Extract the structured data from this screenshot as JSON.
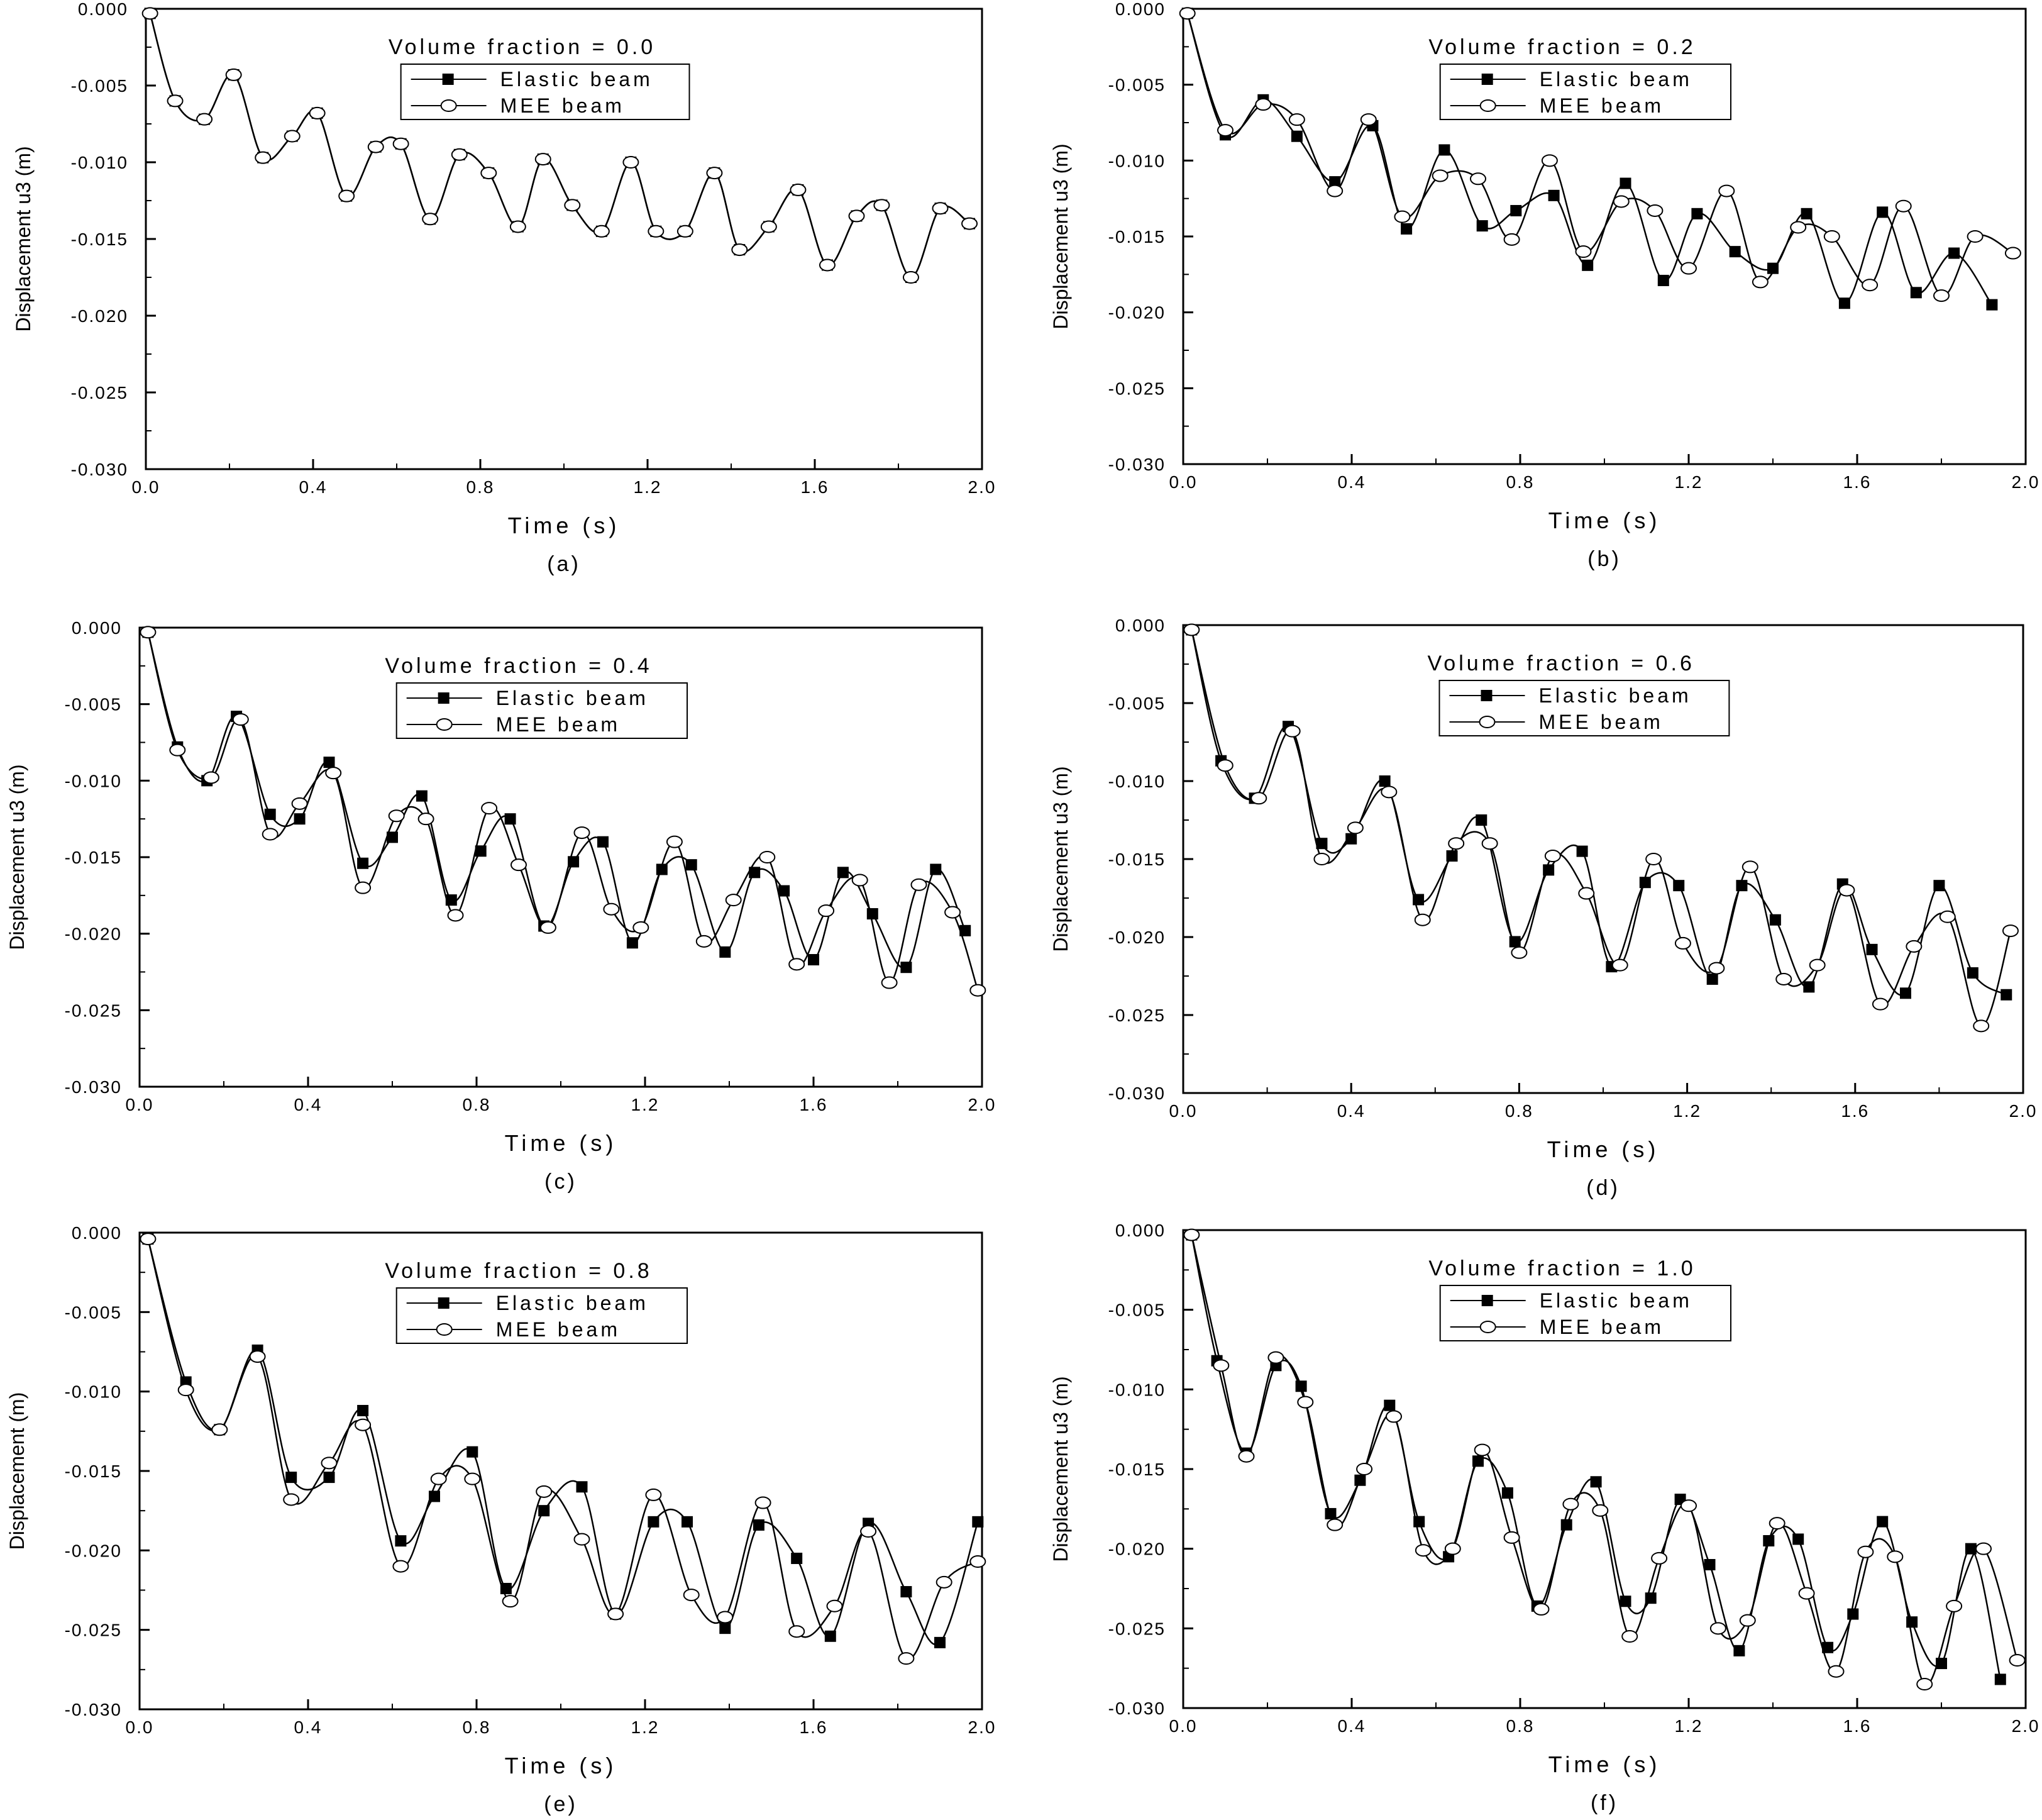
{
  "chart_data": [
    {
      "type": "line",
      "label": "(a)",
      "xlabel": "Time (s)",
      "ylabel": "Displacement u3 (m)",
      "legend_title": "Volume fraction = 0.0",
      "legend_position": "top-center",
      "xlim": [
        0,
        2.0
      ],
      "ylim": [
        -0.03,
        0.0
      ],
      "x_ticks": [
        "0.0",
        "0.4",
        "0.8",
        "1.2",
        "1.6",
        "2.0"
      ],
      "y_ticks": [
        "0.000",
        "-0.005",
        "-0.010",
        "-0.015",
        "-0.020",
        "-0.025",
        "-0.030"
      ],
      "series": [
        {
          "name": "Elastic beam",
          "marker": "square",
          "x": [
            0.01,
            0.07,
            0.14,
            0.21,
            0.28,
            0.35,
            0.41,
            0.48,
            0.55,
            0.61,
            0.68,
            0.75,
            0.82,
            0.89,
            0.95,
            1.02,
            1.09,
            1.16,
            1.22,
            1.29,
            1.36,
            1.42,
            1.49,
            1.56,
            1.63,
            1.7,
            1.76,
            1.83,
            1.9,
            1.97
          ],
          "y": [
            -0.0003,
            -0.006,
            -0.0072,
            -0.0043,
            -0.0097,
            -0.0083,
            -0.0068,
            -0.0122,
            -0.009,
            -0.0088,
            -0.0137,
            -0.0095,
            -0.0107,
            -0.0142,
            -0.0098,
            -0.0128,
            -0.0145,
            -0.01,
            -0.0145,
            -0.0145,
            -0.0107,
            -0.0157,
            -0.0142,
            -0.0118,
            -0.0167,
            -0.0135,
            -0.0128,
            -0.0175,
            -0.013,
            -0.014
          ]
        },
        {
          "name": "MEE beam",
          "marker": "circle",
          "x": [
            0.01,
            0.07,
            0.14,
            0.21,
            0.28,
            0.35,
            0.41,
            0.48,
            0.55,
            0.61,
            0.68,
            0.75,
            0.82,
            0.89,
            0.95,
            1.02,
            1.09,
            1.16,
            1.22,
            1.29,
            1.36,
            1.42,
            1.49,
            1.56,
            1.63,
            1.7,
            1.76,
            1.83,
            1.9,
            1.97
          ],
          "y": [
            -0.0003,
            -0.006,
            -0.0072,
            -0.0043,
            -0.0097,
            -0.0083,
            -0.0068,
            -0.0122,
            -0.009,
            -0.0088,
            -0.0137,
            -0.0095,
            -0.0107,
            -0.0142,
            -0.0098,
            -0.0128,
            -0.0145,
            -0.01,
            -0.0145,
            -0.0145,
            -0.0107,
            -0.0157,
            -0.0142,
            -0.0118,
            -0.0167,
            -0.0135,
            -0.0128,
            -0.0175,
            -0.013,
            -0.014
          ]
        }
      ]
    },
    {
      "type": "line",
      "label": "(b)",
      "xlabel": "Time (s)",
      "ylabel": "Displacement u3 (m)",
      "legend_title": "Volume fraction = 0.2",
      "legend_position": "top-center",
      "xlim": [
        0,
        2.0
      ],
      "ylim": [
        -0.03,
        0.0
      ],
      "x_ticks": [
        "0.0",
        "0.4",
        "0.8",
        "1.2",
        "1.6",
        "2.0"
      ],
      "y_ticks": [
        "0.000",
        "-0.005",
        "-0.010",
        "-0.015",
        "-0.020",
        "-0.025",
        "-0.030"
      ],
      "series": [
        {
          "name": "Elastic beam",
          "marker": "square",
          "x": [
            0.01,
            0.1,
            0.19,
            0.27,
            0.36,
            0.45,
            0.53,
            0.62,
            0.71,
            0.79,
            0.88,
            0.96,
            1.05,
            1.14,
            1.22,
            1.31,
            1.4,
            1.48,
            1.57,
            1.66,
            1.74,
            1.83,
            1.92
          ],
          "y": [
            -0.0003,
            -0.0083,
            -0.006,
            -0.0084,
            -0.0114,
            -0.0077,
            -0.0145,
            -0.0093,
            -0.0143,
            -0.0133,
            -0.0123,
            -0.0169,
            -0.0115,
            -0.0179,
            -0.0135,
            -0.016,
            -0.0171,
            -0.0135,
            -0.0194,
            -0.0134,
            -0.0187,
            -0.0161,
            -0.0195
          ]
        },
        {
          "name": "MEE beam",
          "marker": "circle",
          "x": [
            0.01,
            0.1,
            0.19,
            0.27,
            0.36,
            0.44,
            0.52,
            0.61,
            0.7,
            0.78,
            0.87,
            0.95,
            1.04,
            1.12,
            1.2,
            1.29,
            1.37,
            1.46,
            1.54,
            1.63,
            1.71,
            1.8,
            1.88,
            1.97
          ],
          "y": [
            -0.0003,
            -0.008,
            -0.0063,
            -0.0073,
            -0.012,
            -0.0073,
            -0.0137,
            -0.011,
            -0.0112,
            -0.0152,
            -0.01,
            -0.016,
            -0.0127,
            -0.0133,
            -0.0171,
            -0.012,
            -0.018,
            -0.0144,
            -0.015,
            -0.0182,
            -0.013,
            -0.0189,
            -0.015,
            -0.0161
          ]
        }
      ]
    },
    {
      "type": "line",
      "label": "(c)",
      "xlabel": "Time (s)",
      "ylabel": "Displacement u3 (m)",
      "legend_title": "Volume fraction = 0.4",
      "legend_position": "top-center",
      "xlim": [
        0,
        2.0
      ],
      "ylim": [
        -0.03,
        0.0
      ],
      "x_ticks": [
        "0.0",
        "0.4",
        "0.8",
        "1.2",
        "1.6",
        "2.0"
      ],
      "y_ticks": [
        "0.000",
        "-0.005",
        "-0.010",
        "-0.015",
        "-0.020",
        "-0.025",
        "-0.030"
      ],
      "series": [
        {
          "name": "Elastic beam",
          "marker": "square",
          "x": [
            0.02,
            0.09,
            0.16,
            0.23,
            0.31,
            0.38,
            0.45,
            0.53,
            0.6,
            0.67,
            0.74,
            0.81,
            0.88,
            0.96,
            1.03,
            1.1,
            1.17,
            1.24,
            1.31,
            1.39,
            1.46,
            1.53,
            1.6,
            1.67,
            1.74,
            1.82,
            1.89,
            1.96
          ],
          "y": [
            -0.0003,
            -0.0078,
            -0.01,
            -0.0058,
            -0.0122,
            -0.0125,
            -0.0088,
            -0.0154,
            -0.0137,
            -0.011,
            -0.0178,
            -0.0146,
            -0.0125,
            -0.0195,
            -0.0153,
            -0.014,
            -0.0206,
            -0.0158,
            -0.0155,
            -0.0212,
            -0.016,
            -0.0172,
            -0.0217,
            -0.016,
            -0.0187,
            -0.0222,
            -0.0158,
            -0.0198
          ]
        },
        {
          "name": "MEE beam",
          "marker": "circle",
          "x": [
            0.02,
            0.09,
            0.17,
            0.24,
            0.31,
            0.38,
            0.46,
            0.53,
            0.61,
            0.68,
            0.75,
            0.83,
            0.9,
            0.97,
            1.05,
            1.12,
            1.19,
            1.27,
            1.34,
            1.41,
            1.49,
            1.56,
            1.63,
            1.71,
            1.78,
            1.85,
            1.93,
            1.99
          ],
          "y": [
            -0.0003,
            -0.008,
            -0.0098,
            -0.006,
            -0.0135,
            -0.0115,
            -0.0095,
            -0.017,
            -0.0123,
            -0.0125,
            -0.0188,
            -0.0118,
            -0.0155,
            -0.0196,
            -0.0134,
            -0.0184,
            -0.0196,
            -0.014,
            -0.0205,
            -0.0178,
            -0.015,
            -0.022,
            -0.0185,
            -0.0165,
            -0.0232,
            -0.0168,
            -0.0186,
            -0.0237
          ]
        }
      ]
    },
    {
      "type": "line",
      "label": "(d)",
      "xlabel": "Time (s)",
      "ylabel": "Displacement u3 (m)",
      "legend_title": "Volume fraction = 0.6",
      "legend_position": "top-center",
      "xlim": [
        0,
        2.0
      ],
      "ylim": [
        -0.03,
        0.0
      ],
      "x_ticks": [
        "0.0",
        "0.4",
        "0.8",
        "1.2",
        "1.6",
        "2.0"
      ],
      "y_ticks": [
        "0.000",
        "-0.005",
        "-0.010",
        "-0.015",
        "-0.020",
        "-0.025",
        "-0.030"
      ],
      "series": [
        {
          "name": "Elastic beam",
          "marker": "square",
          "x": [
            0.02,
            0.09,
            0.17,
            0.25,
            0.33,
            0.4,
            0.48,
            0.56,
            0.64,
            0.71,
            0.79,
            0.87,
            0.95,
            1.02,
            1.1,
            1.18,
            1.26,
            1.33,
            1.41,
            1.49,
            1.57,
            1.64,
            1.72,
            1.8,
            1.88,
            1.96
          ],
          "y": [
            -0.0003,
            -0.0087,
            -0.0111,
            -0.0065,
            -0.014,
            -0.0137,
            -0.01,
            -0.0176,
            -0.0148,
            -0.0125,
            -0.0203,
            -0.0157,
            -0.0145,
            -0.0219,
            -0.0165,
            -0.0167,
            -0.0227,
            -0.0167,
            -0.0189,
            -0.0232,
            -0.0166,
            -0.0208,
            -0.0236,
            -0.0167,
            -0.0223,
            -0.0237
          ]
        },
        {
          "name": "MEE beam",
          "marker": "circle",
          "x": [
            0.02,
            0.1,
            0.18,
            0.26,
            0.33,
            0.41,
            0.49,
            0.57,
            0.65,
            0.73,
            0.8,
            0.88,
            0.96,
            1.04,
            1.12,
            1.19,
            1.27,
            1.35,
            1.43,
            1.51,
            1.58,
            1.66,
            1.74,
            1.82,
            1.9,
            1.97
          ],
          "y": [
            -0.0003,
            -0.009,
            -0.0111,
            -0.0068,
            -0.015,
            -0.013,
            -0.0107,
            -0.0189,
            -0.014,
            -0.014,
            -0.021,
            -0.0148,
            -0.0172,
            -0.0218,
            -0.015,
            -0.0204,
            -0.022,
            -0.0155,
            -0.0227,
            -0.0218,
            -0.017,
            -0.0243,
            -0.0206,
            -0.0187,
            -0.0257,
            -0.0196
          ]
        }
      ]
    },
    {
      "type": "line",
      "label": "(e)",
      "xlabel": "Time (s)",
      "ylabel": "Displacement (m)",
      "legend_title": "Volume fraction = 0.8",
      "legend_position": "top-center",
      "xlim": [
        0,
        2.0
      ],
      "ylim": [
        -0.03,
        0.0
      ],
      "x_ticks": [
        "0.0",
        "0.4",
        "0.8",
        "1.2",
        "1.6",
        "2.0"
      ],
      "y_ticks": [
        "0.000",
        "-0.005",
        "-0.010",
        "-0.015",
        "-0.020",
        "-0.025",
        "-0.030"
      ],
      "series": [
        {
          "name": "Elastic beam",
          "marker": "square",
          "x": [
            0.02,
            0.11,
            0.19,
            0.28,
            0.36,
            0.45,
            0.53,
            0.62,
            0.7,
            0.79,
            0.87,
            0.96,
            1.05,
            1.13,
            1.22,
            1.3,
            1.39,
            1.47,
            1.56,
            1.64,
            1.73,
            1.82,
            1.9,
            1.99
          ],
          "y": [
            -0.0004,
            -0.0094,
            -0.0124,
            -0.0074,
            -0.0154,
            -0.0154,
            -0.0112,
            -0.0194,
            -0.0166,
            -0.0138,
            -0.0224,
            -0.0175,
            -0.016,
            -0.024,
            -0.0182,
            -0.0182,
            -0.0249,
            -0.0184,
            -0.0205,
            -0.0254,
            -0.0183,
            -0.0226,
            -0.0258,
            -0.0182
          ]
        },
        {
          "name": "MEE beam",
          "marker": "circle",
          "x": [
            0.02,
            0.11,
            0.19,
            0.28,
            0.36,
            0.45,
            0.53,
            0.62,
            0.71,
            0.79,
            0.88,
            0.96,
            1.05,
            1.13,
            1.22,
            1.31,
            1.39,
            1.48,
            1.56,
            1.65,
            1.73,
            1.82,
            1.91,
            1.99
          ],
          "y": [
            -0.0004,
            -0.0099,
            -0.0124,
            -0.0078,
            -0.0168,
            -0.0145,
            -0.0121,
            -0.021,
            -0.0155,
            -0.0155,
            -0.0232,
            -0.0163,
            -0.0193,
            -0.024,
            -0.0165,
            -0.0228,
            -0.0242,
            -0.017,
            -0.0251,
            -0.0235,
            -0.0188,
            -0.0268,
            -0.022,
            -0.0207
          ]
        }
      ]
    },
    {
      "type": "line",
      "label": "(f)",
      "xlabel": "Time (s)",
      "ylabel": "Displacement u3 (m)",
      "legend_title": "Volume fraction = 1.0",
      "legend_position": "top-center",
      "xlim": [
        0,
        2.0
      ],
      "ylim": [
        -0.03,
        0.0
      ],
      "x_ticks": [
        "0.0",
        "0.4",
        "0.8",
        "1.2",
        "1.6",
        "2.0"
      ],
      "y_ticks": [
        "0.000",
        "-0.005",
        "-0.010",
        "-0.015",
        "-0.020",
        "-0.025",
        "-0.030"
      ],
      "series": [
        {
          "name": "Elastic beam",
          "marker": "square",
          "x": [
            0.02,
            0.08,
            0.15,
            0.22,
            0.28,
            0.35,
            0.42,
            0.49,
            0.56,
            0.63,
            0.7,
            0.77,
            0.84,
            0.91,
            0.98,
            1.05,
            1.11,
            1.18,
            1.25,
            1.32,
            1.39,
            1.46,
            1.53,
            1.59,
            1.66,
            1.73,
            1.8,
            1.87,
            1.94
          ],
          "y": [
            -0.0003,
            -0.0082,
            -0.014,
            -0.0085,
            -0.0098,
            -0.0178,
            -0.0157,
            -0.011,
            -0.0183,
            -0.0205,
            -0.0145,
            -0.0165,
            -0.0236,
            -0.0185,
            -0.0158,
            -0.0233,
            -0.0231,
            -0.0169,
            -0.021,
            -0.0264,
            -0.0195,
            -0.0194,
            -0.0262,
            -0.0241,
            -0.0183,
            -0.0246,
            -0.0272,
            -0.02,
            -0.0282
          ]
        },
        {
          "name": "MEE beam",
          "marker": "circle",
          "x": [
            0.02,
            0.09,
            0.15,
            0.22,
            0.29,
            0.36,
            0.43,
            0.5,
            0.57,
            0.64,
            0.71,
            0.78,
            0.85,
            0.92,
            0.99,
            1.06,
            1.13,
            1.2,
            1.27,
            1.34,
            1.41,
            1.48,
            1.55,
            1.62,
            1.69,
            1.76,
            1.83,
            1.9,
            1.98
          ],
          "y": [
            -0.0003,
            -0.0085,
            -0.0142,
            -0.008,
            -0.0108,
            -0.0185,
            -0.015,
            -0.0117,
            -0.0201,
            -0.02,
            -0.0138,
            -0.0193,
            -0.0238,
            -0.0172,
            -0.0176,
            -0.0255,
            -0.0206,
            -0.0173,
            -0.025,
            -0.0245,
            -0.0184,
            -0.0228,
            -0.0277,
            -0.0202,
            -0.0205,
            -0.0285,
            -0.0236,
            -0.02,
            -0.027
          ]
        }
      ]
    }
  ]
}
